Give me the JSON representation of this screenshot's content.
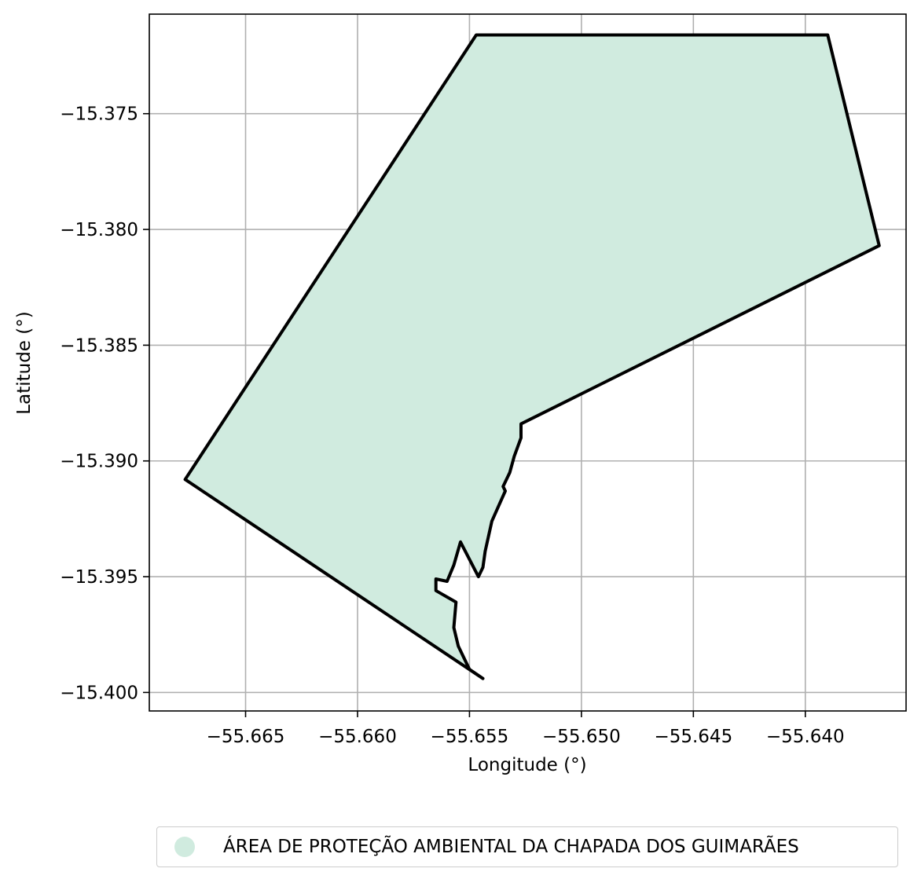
{
  "chart_data": {
    "type": "map",
    "xlabel": "Longitude (°)",
    "ylabel": "Latitude (°)",
    "xlim": [
      -55.6693,
      -55.6355
    ],
    "ylim": [
      -15.4008,
      -15.3707
    ],
    "xticks": [
      -55.665,
      -55.66,
      -55.655,
      -55.65,
      -55.645,
      -55.64
    ],
    "xtick_labels": [
      "−55.665",
      "−55.660",
      "−55.655",
      "−55.650",
      "−55.645",
      "−55.640"
    ],
    "yticks": [
      -15.375,
      -15.38,
      -15.385,
      -15.39,
      -15.395,
      -15.4
    ],
    "ytick_labels": [
      "−15.375",
      "−15.380",
      "−15.385",
      "−15.390",
      "−15.395",
      "−15.400"
    ],
    "grid": true,
    "legend_position": "bottom-center",
    "fill_color": "#d0ebdf",
    "edge_color": "#000000",
    "grid_color": "#b0b0b0",
    "polygons": [
      {
        "name": "ÁREA DE PROTEÇÃO AMBIENTAL DA CHAPADA DOS GUIMARÃES",
        "coordinates": [
          [
            -55.6547,
            -15.3716
          ],
          [
            -55.639,
            -15.3716
          ],
          [
            -55.6367,
            -15.3807
          ],
          [
            -55.6527,
            -15.3884
          ],
          [
            -55.6527,
            -15.389
          ],
          [
            -55.653,
            -15.3898
          ],
          [
            -55.6532,
            -15.3905
          ],
          [
            -55.6535,
            -15.3911
          ],
          [
            -55.6534,
            -15.3913
          ],
          [
            -55.654,
            -15.3926
          ],
          [
            -55.6543,
            -15.3939
          ],
          [
            -55.6544,
            -15.3946
          ],
          [
            -55.6546,
            -15.395
          ],
          [
            -55.6554,
            -15.3935
          ],
          [
            -55.6557,
            -15.3945
          ],
          [
            -55.656,
            -15.3952
          ],
          [
            -55.6565,
            -15.3951
          ],
          [
            -55.6565,
            -15.3956
          ],
          [
            -55.6556,
            -15.3961
          ],
          [
            -55.6557,
            -15.3972
          ],
          [
            -55.6555,
            -15.398
          ],
          [
            -55.655,
            -15.399
          ],
          [
            -55.6544,
            -15.3994
          ],
          [
            -55.6677,
            -15.3908
          ],
          [
            -55.6547,
            -15.3716
          ]
        ]
      }
    ]
  },
  "legend": {
    "items": [
      {
        "label": "ÁREA DE PROTEÇÃO AMBIENTAL DA CHAPADA DOS GUIMARÃES",
        "color": "#d0ebdf"
      }
    ]
  }
}
